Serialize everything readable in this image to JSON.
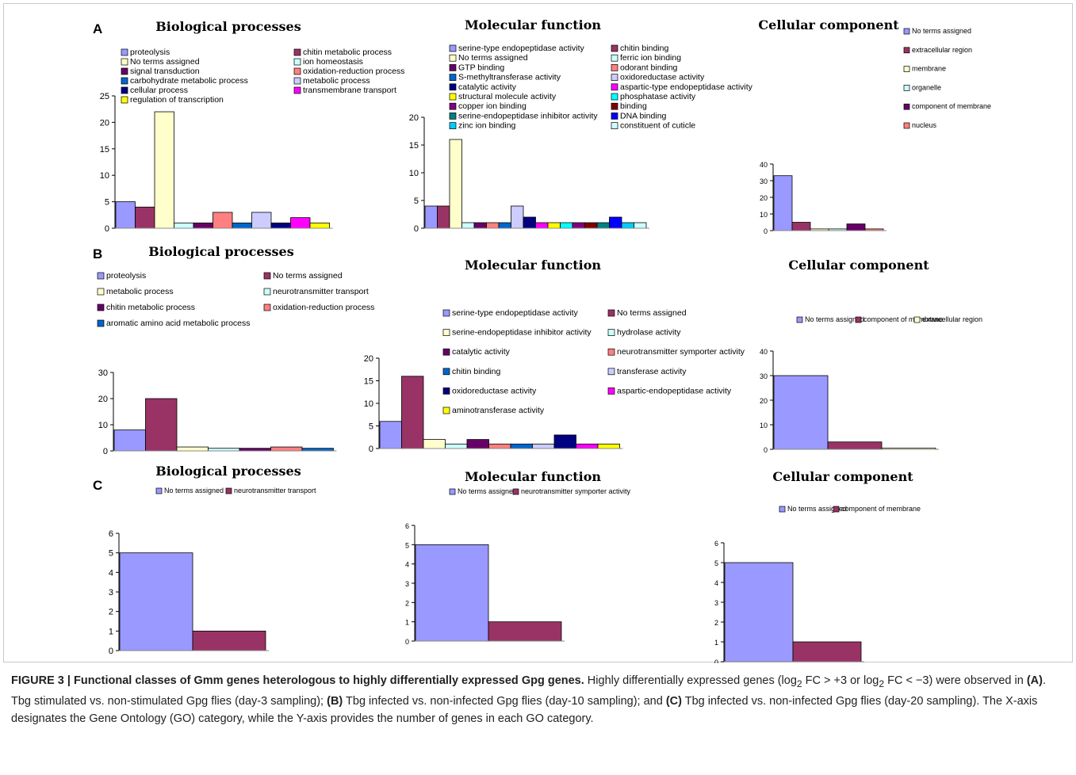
{
  "panel_labels": [
    "A",
    "B",
    "C"
  ],
  "caption": {
    "title": "FIGURE 3 | Functional classes of Gmm genes heterologous to highly differentially expressed Gpg genes.",
    "p1": " Highly differentially expressed genes (log",
    "sub1": "2",
    "p2": " FC > +3 or log",
    "sub2": "2",
    "p3": " FC < −3) were observed in ",
    "a": "(A)",
    "p4": ". Tbg stimulated vs. non-stimulated Gpg flies (day-3 sampling); ",
    "b": "(B)",
    "p5": " Tbg infected vs. non-infected Gpg flies (day-10 sampling); and ",
    "c": "(C)",
    "p6": " Tbg infected vs. non-infected Gpg flies (day-20 sampling). The X-axis designates the Gene Ontology (GO) category, while the Y-axis provides the number of genes in each GO category."
  },
  "chart_data": [
    {
      "id": "A-bio",
      "panel": "A",
      "type": "bar",
      "title": "Biological processes",
      "categories": [
        "proteolysis",
        "chitin metabolic process",
        "No terms assigned",
        "ion homeostasis",
        "signal transduction",
        "oxidation-reduction process",
        "carbohydrate metabolic process",
        "metabolic process",
        "cellular process",
        "transmembrane transport",
        "regulation of transcription"
      ],
      "values": [
        5,
        4,
        22,
        1,
        1,
        3,
        1,
        3,
        1,
        2,
        1
      ],
      "colors": [
        "#9999ff",
        "#993366",
        "#ffffcc",
        "#ccffff",
        "#660066",
        "#ff8080",
        "#0066cc",
        "#ccccff",
        "#000080",
        "#ff00ff",
        "#ffff00"
      ],
      "yticks": [
        "0",
        "5",
        "10",
        "15",
        "20",
        "25"
      ],
      "ylim": [
        0,
        25
      ],
      "grid": false,
      "legend": "top"
    },
    {
      "id": "A-mol",
      "panel": "A",
      "type": "bar",
      "title": "Molecular function",
      "categories": [
        "serine-type endopeptidase activity",
        "chitin binding",
        "No terms assigned",
        "ferric ion binding",
        "GTP binding",
        "odorant binding",
        "S-methyltransferase activity",
        "oxidoreductase activity",
        "catalytic activity",
        "aspartic-type endopeptidase activity",
        "structural molecule activity",
        "phosphatase activity",
        "copper ion binding",
        "binding",
        "serine-endopeptidase inhibitor activity",
        "DNA binding",
        "zinc ion binding",
        "constituent of cuticle"
      ],
      "values": [
        4,
        4,
        16,
        1,
        1,
        1,
        1,
        4,
        2,
        1,
        1,
        1,
        1,
        1,
        1,
        2,
        1,
        1
      ],
      "colors": [
        "#9999ff",
        "#993366",
        "#ffffcc",
        "#ccffff",
        "#660066",
        "#ff8080",
        "#0066cc",
        "#ccccff",
        "#000080",
        "#ff00ff",
        "#ffff00",
        "#00ffff",
        "#800080",
        "#800000",
        "#008080",
        "#0000ff",
        "#00ccff",
        "#ccffff"
      ],
      "yticks": [
        "0",
        "5",
        "10",
        "15",
        "20"
      ],
      "ylim": [
        0,
        20
      ],
      "grid": false,
      "legend": "top"
    },
    {
      "id": "A-cell",
      "panel": "A",
      "type": "bar",
      "title": "Cellular component",
      "categories": [
        "No terms assigned",
        "extracellular region",
        "membrane",
        "organelle",
        "component of membrane",
        "nucleus"
      ],
      "values": [
        33,
        5,
        1,
        1,
        4,
        1
      ],
      "colors": [
        "#9999ff",
        "#993366",
        "#ffffcc",
        "#ccffff",
        "#660066",
        "#ff8080"
      ],
      "yticks": [
        "0",
        "10",
        "20",
        "30",
        "40"
      ],
      "ylim": [
        0,
        40
      ],
      "grid": false,
      "legend": "top-right"
    },
    {
      "id": "B-bio",
      "panel": "B",
      "type": "bar",
      "title": "Biological processes",
      "categories": [
        "proteolysis",
        "No terms assigned",
        "metabolic process",
        "neurotransmitter transport",
        "chitin metabolic process",
        "oxidation-reduction process",
        "aromatic amino acid metabolic process"
      ],
      "values": [
        8,
        20,
        1.5,
        1,
        1,
        1.5,
        1
      ],
      "colors": [
        "#9999ff",
        "#993366",
        "#ffffcc",
        "#ccffff",
        "#660066",
        "#ff8080",
        "#0066cc"
      ],
      "yticks": [
        "0",
        "10",
        "20",
        "30"
      ],
      "ylim": [
        0,
        30
      ],
      "grid": false,
      "legend": "top"
    },
    {
      "id": "B-mol",
      "panel": "B",
      "type": "bar",
      "title": "Molecular function",
      "categories": [
        "serine-type endopeptidase activity",
        "No terms assigned",
        "serine-endopeptidase inhibitor activity",
        "hydrolase activity",
        "catalytic activity",
        "neurotransmitter symporter activity",
        "chitin binding",
        "transferase activity",
        "oxidoreductase activity",
        "aspartic-endopeptidase activity",
        "aminotransferase activity"
      ],
      "values": [
        6,
        16,
        2,
        1,
        2,
        1,
        1,
        1,
        3,
        1,
        1
      ],
      "colors": [
        "#9999ff",
        "#993366",
        "#ffffcc",
        "#ccffff",
        "#660066",
        "#ff8080",
        "#0066cc",
        "#ccccff",
        "#000080",
        "#ff00ff",
        "#ffff00"
      ],
      "yticks": [
        "0",
        "5",
        "10",
        "15",
        "20"
      ],
      "ylim": [
        0,
        20
      ],
      "grid": false,
      "legend": "top-right"
    },
    {
      "id": "B-cell",
      "panel": "B",
      "type": "bar",
      "title": "Cellular component",
      "categories": [
        "No terms assigned",
        "component of membrane",
        "extracellular region"
      ],
      "values": [
        30,
        3,
        0.5
      ],
      "colors": [
        "#9999ff",
        "#993366",
        "#ffffcc"
      ],
      "yticks": [
        "0",
        "10",
        "20",
        "30",
        "40"
      ],
      "ylim": [
        0,
        40
      ],
      "grid": false,
      "legend": "top"
    },
    {
      "id": "C-bio",
      "panel": "C",
      "type": "bar",
      "title": "Biological processes",
      "categories": [
        "No terms assigned",
        "neurotransmitter transport"
      ],
      "values": [
        5,
        1
      ],
      "colors": [
        "#9999ff",
        "#993366"
      ],
      "yticks": [
        "0",
        "1",
        "2",
        "3",
        "4",
        "5",
        "6"
      ],
      "ylim": [
        0,
        6
      ],
      "grid": false,
      "legend": "top"
    },
    {
      "id": "C-mol",
      "panel": "C",
      "type": "bar",
      "title": "Molecular function",
      "categories": [
        "No terms assigned",
        "neurotransmitter symporter activity"
      ],
      "values": [
        5,
        1
      ],
      "colors": [
        "#9999ff",
        "#993366"
      ],
      "yticks": [
        "0",
        "1",
        "2",
        "3",
        "4",
        "5",
        "6"
      ],
      "ylim": [
        0,
        6
      ],
      "grid": false,
      "legend": "top"
    },
    {
      "id": "C-cell",
      "panel": "C",
      "type": "bar",
      "title": "Cellular component",
      "categories": [
        "No terms assigned",
        "component of membrane"
      ],
      "values": [
        5,
        1
      ],
      "colors": [
        "#9999ff",
        "#993366"
      ],
      "yticks": [
        "0",
        "1",
        "2",
        "3",
        "4",
        "5",
        "6"
      ],
      "ylim": [
        0,
        6
      ],
      "grid": false,
      "legend": "top"
    }
  ]
}
